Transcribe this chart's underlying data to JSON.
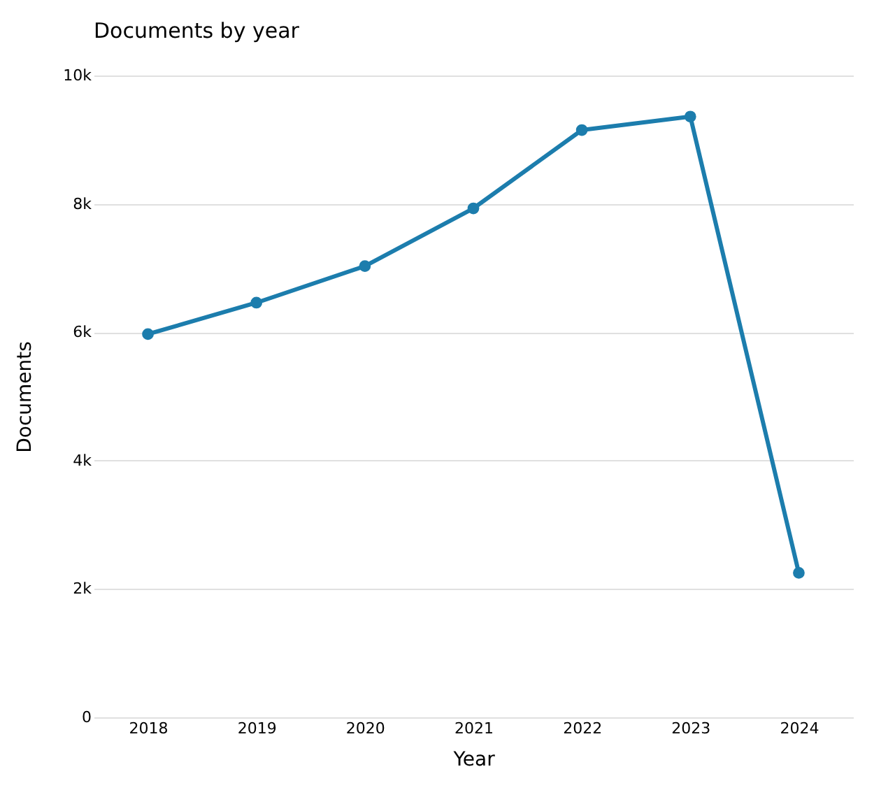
{
  "chart_data": {
    "type": "line",
    "title": "Documents by year",
    "xlabel": "Year",
    "ylabel": "Documents",
    "categories": [
      "2018",
      "2019",
      "2020",
      "2021",
      "2022",
      "2023",
      "2024"
    ],
    "series": [
      {
        "color": "#1c7dad",
        "values": [
          5970,
          6460,
          7030,
          7930,
          9150,
          9360,
          2250
        ]
      }
    ],
    "ylim": [
      0,
      10000
    ],
    "yticks": [
      0,
      {
        "value": 2000,
        "label": "2k"
      },
      {
        "value": 4000,
        "label": "4k"
      },
      {
        "value": 6000,
        "label": "6k"
      },
      {
        "value": 8000,
        "label": "8k"
      },
      {
        "value": 10000,
        "label": "10k"
      }
    ],
    "grid": "y",
    "marker": "circle",
    "line_style": "solid"
  }
}
